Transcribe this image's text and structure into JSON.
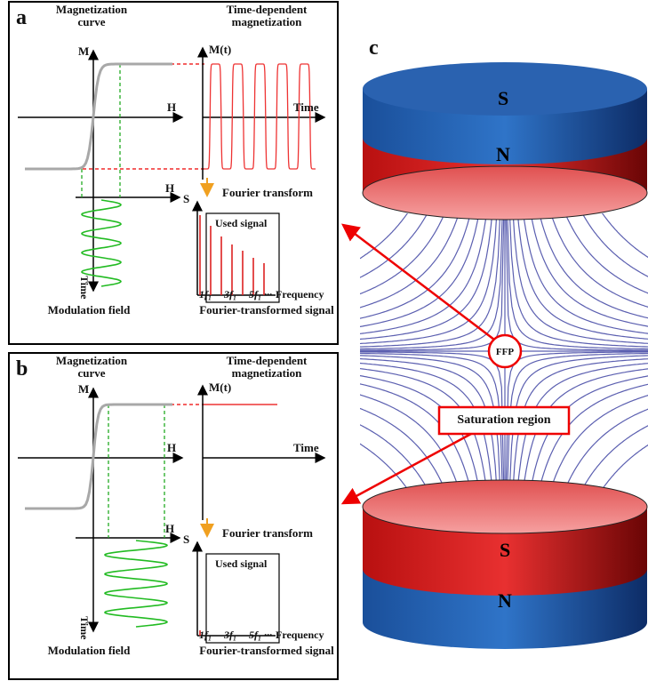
{
  "panels": [
    {
      "label": "a",
      "curve_title": "Magnetization curve",
      "time_title": "Time-dependent magnetization",
      "m_axis": "M",
      "mt_axis": "M(t)",
      "h_axis": "H",
      "time_axis": "Time",
      "h_axis_lower": "H",
      "s_axis": "S",
      "fourier": "Fourier transform",
      "used_signal": "Used signal",
      "time_axis_lower": "Time",
      "freq_ticks": [
        "1f₁",
        "3f₁",
        "5f₁ ···"
      ],
      "freq_axis": "Frequency",
      "modulation": "Modulation field",
      "ft_signal": "Fourier-transformed signal"
    },
    {
      "label": "b",
      "curve_title": "Magnetization curve",
      "time_title": "Time-dependent magnetization",
      "m_axis": "M",
      "mt_axis": "M(t)",
      "h_axis": "H",
      "time_axis": "Time",
      "h_axis_lower": "H",
      "s_axis": "S",
      "fourier": "Fourier transform",
      "used_signal": "Used signal",
      "time_axis_lower": "Time",
      "freq_ticks": [
        "1f₁",
        "3f₁",
        "5f₁ ···"
      ],
      "freq_axis": "Frequency",
      "modulation": "Modulation field",
      "ft_signal": "Fourier-transformed signal"
    }
  ],
  "field_panel": {
    "label": "c",
    "top_magnet": [
      "S",
      "N"
    ],
    "bottom_magnet": [
      "S",
      "N"
    ],
    "ffp": "FFP",
    "saturation": "Saturation region"
  }
}
